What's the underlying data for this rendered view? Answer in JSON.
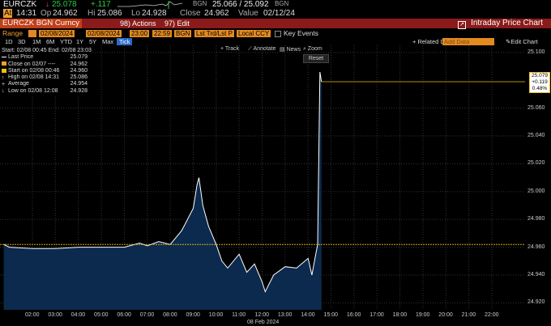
{
  "header": {
    "ticker": "EURCZK",
    "arrow": "↓",
    "last": "25.078",
    "change": "+.117",
    "source": "BGN",
    "quote": "25.066 / 25.092",
    "quote_src": "BGN",
    "at_label": "At",
    "at": "14:31",
    "op_label": "Op",
    "op": "24.962",
    "hi_label": "Hi",
    "hi": "25.086",
    "lo_label": "Lo",
    "lo": "24.928",
    "close_label": "Close",
    "close": "24.962",
    "value_label": "Value",
    "value": "02/12/24"
  },
  "toolbar": {
    "security": "EURCZK BGN Curncy",
    "actions": "98) Actions",
    "edit": "97) Edit",
    "title": "Intraday Price Chart"
  },
  "range": {
    "label": "Range",
    "start_date": "02/08/2024",
    "start_time": "00:45",
    "end_date": "02/08/2024",
    "end_time": "23:00",
    "source_field": "22:59",
    "src": "BGN",
    "field": "Lst Trd/Lst P",
    "ccy": "Local CCY",
    "key_events": "Key Events"
  },
  "periods": [
    "1D",
    "3D",
    "1M",
    "6M",
    "YTD",
    "1Y",
    "5Y",
    "Max"
  ],
  "tick_label": "Tick",
  "right_tools": {
    "related": "+ Related Data",
    "add_data": "Add Data",
    "edit_chart": "Edit Chart"
  },
  "chart_tools": [
    "+ Track",
    "Annotate",
    "News",
    "Zoom"
  ],
  "reset": "Reset",
  "legend": {
    "range": "Start: 02/08 00:45  End: 02/08 23:03",
    "rows": [
      {
        "label": "Last Price",
        "value": "25.079",
        "color": "#ffffff"
      },
      {
        "label": "Close on 02/07 ----",
        "value": "24.962",
        "color": "#f0a030"
      },
      {
        "label": "Start on 02/08 00:46",
        "value": "24.960",
        "color": "#f0c010"
      },
      {
        "label": "High on 02/08 14:31",
        "value": "25.086",
        "color": ""
      },
      {
        "label": "Average",
        "value": "24.954",
        "color": ""
      },
      {
        "label": "Low on 02/08 12:08",
        "value": "24.928",
        "color": ""
      }
    ]
  },
  "price_box": [
    "25.079",
    "+0.119",
    "0.48%"
  ],
  "chart_data": {
    "type": "line",
    "x_ticks": [
      "02:00",
      "03:00",
      "04:00",
      "05:00",
      "06:00",
      "07:00",
      "08:00",
      "09:00",
      "10:00",
      "11:00",
      "12:00",
      "13:00",
      "14:00",
      "15:00",
      "16:00",
      "17:00",
      "18:00",
      "19:00",
      "20:00",
      "21:00",
      "22:00"
    ],
    "xlabel": "08 Feb 2024",
    "y_ticks": [
      "25.100",
      "25.079",
      "25.060",
      "25.040",
      "25.020",
      "25.000",
      "24.980",
      "24.960",
      "24.940",
      "24.920"
    ],
    "ylim": [
      24.915,
      25.104
    ],
    "series": [
      {
        "x": [
          "00:45",
          "01:00",
          "02:00",
          "03:00",
          "04:00",
          "05:00",
          "06:00",
          "06:40",
          "07:00",
          "07:30",
          "08:00",
          "08:30",
          "09:00",
          "09:10",
          "09:15",
          "09:25",
          "09:40",
          "10:00",
          "10:15",
          "10:30",
          "11:00",
          "11:20",
          "11:40",
          "12:00",
          "12:08",
          "12:30",
          "13:00",
          "13:30",
          "14:00",
          "14:10",
          "14:20",
          "14:25",
          "14:31",
          "14:35"
        ],
        "values": [
          24.962,
          24.96,
          24.959,
          24.959,
          24.96,
          24.96,
          24.96,
          24.963,
          24.961,
          24.964,
          24.962,
          24.972,
          24.988,
          25.005,
          25.01,
          24.99,
          24.975,
          24.962,
          24.95,
          24.945,
          24.955,
          24.942,
          24.948,
          24.935,
          24.928,
          24.94,
          24.946,
          24.945,
          24.952,
          24.94,
          24.955,
          24.962,
          25.086,
          25.079
        ]
      }
    ],
    "ref_lines": [
      {
        "value": 25.079,
        "color": "#f0c010"
      },
      {
        "value": 24.962,
        "color": "#f0c010"
      }
    ],
    "fill_color": "#0c2a4e",
    "line_color": "#ffffff"
  }
}
